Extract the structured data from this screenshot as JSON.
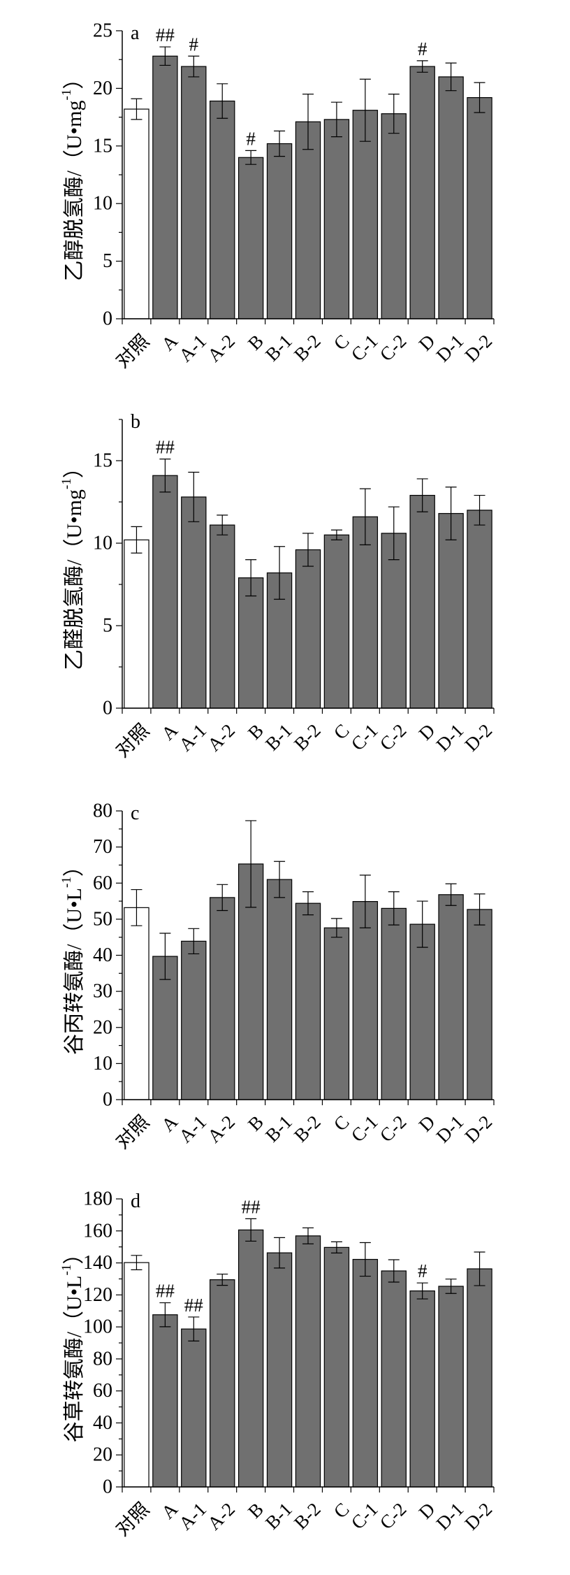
{
  "chart_data": [
    {
      "type": "bar",
      "panel_label": "a",
      "ylabel": "乙醇脱氢酶/（U•mg-1）",
      "ylabel_main": "乙醇脱氢酶/（U•mg",
      "ylabel_sup": "-1",
      "ylabel_tail": "）",
      "ylim": [
        0,
        25
      ],
      "yticks": [
        0,
        5,
        10,
        15,
        20,
        25
      ],
      "categories": [
        "对照",
        "A",
        "A-1",
        "A-2",
        "B",
        "B-1",
        "B-2",
        "C",
        "C-1",
        "C-2",
        "D",
        "D-1",
        "D-2"
      ],
      "values": [
        18.2,
        22.8,
        21.9,
        18.9,
        14.0,
        15.2,
        17.1,
        17.3,
        18.1,
        17.8,
        21.9,
        21.0,
        19.2
      ],
      "errors": [
        0.9,
        0.8,
        0.9,
        1.5,
        0.6,
        1.1,
        2.4,
        1.5,
        2.7,
        1.7,
        0.5,
        1.2,
        1.3
      ],
      "significance": [
        "",
        "##",
        "#",
        "",
        "#",
        "",
        "",
        "",
        "",
        "",
        "#",
        "",
        ""
      ],
      "colors": {
        "control": "#ffffff",
        "treatment": "#707070"
      }
    },
    {
      "type": "bar",
      "panel_label": "b",
      "ylabel": "乙醛脱氢酶/（U•mg-1）",
      "ylabel_main": "乙醛脱氢酶/（U•mg",
      "ylabel_sup": "-1",
      "ylabel_tail": "）",
      "ylim": [
        0,
        17.5
      ],
      "yticks": [
        0,
        5,
        10,
        15
      ],
      "categories": [
        "对照",
        "A",
        "A-1",
        "A-2",
        "B",
        "B-1",
        "B-2",
        "C",
        "C-1",
        "C-2",
        "D",
        "D-1",
        "D-2"
      ],
      "values": [
        10.2,
        14.1,
        12.8,
        11.1,
        7.9,
        8.2,
        9.6,
        10.5,
        11.6,
        10.6,
        12.9,
        11.8,
        12.0
      ],
      "errors": [
        0.8,
        1.0,
        1.5,
        0.6,
        1.1,
        1.6,
        1.0,
        0.3,
        1.7,
        1.6,
        1.0,
        1.6,
        0.9
      ],
      "significance": [
        "",
        "##",
        "",
        "",
        "",
        "",
        "",
        "",
        "",
        "",
        "",
        "",
        ""
      ],
      "colors": {
        "control": "#ffffff",
        "treatment": "#707070"
      }
    },
    {
      "type": "bar",
      "panel_label": "c",
      "ylabel": "谷丙转氨酶/（U•L-1）",
      "ylabel_main": "谷丙转氨酶/（U•L",
      "ylabel_sup": "-1",
      "ylabel_tail": "）",
      "ylim": [
        0,
        80
      ],
      "yticks": [
        0,
        10,
        20,
        30,
        40,
        50,
        60,
        70,
        80
      ],
      "categories": [
        "对照",
        "A",
        "A-1",
        "A-2",
        "B",
        "B-1",
        "B-2",
        "C",
        "C-1",
        "C-2",
        "D",
        "D-1",
        "D-2"
      ],
      "values": [
        53.2,
        39.7,
        43.9,
        56.0,
        65.3,
        61.0,
        54.4,
        47.6,
        54.9,
        53.0,
        48.6,
        56.8,
        52.7
      ],
      "errors": [
        5.0,
        6.4,
        3.5,
        3.6,
        12.0,
        5.0,
        3.2,
        2.6,
        7.3,
        4.6,
        6.4,
        3.0,
        4.3
      ],
      "significance": [
        "",
        "",
        "",
        "",
        "",
        "",
        "",
        "",
        "",
        "",
        "",
        "",
        ""
      ],
      "colors": {
        "control": "#ffffff",
        "treatment": "#707070"
      }
    },
    {
      "type": "bar",
      "panel_label": "d",
      "ylabel": "谷草转氨酶/（U•L-1）",
      "ylabel_main": "谷草转氨酶/（U•L",
      "ylabel_sup": "-1",
      "ylabel_tail": "）",
      "ylim": [
        0,
        180
      ],
      "yticks": [
        0,
        20,
        40,
        60,
        80,
        100,
        120,
        140,
        160,
        180
      ],
      "categories": [
        "对照",
        "A",
        "A-1",
        "A-2",
        "B",
        "B-1",
        "B-2",
        "C",
        "C-1",
        "C-2",
        "D",
        "D-1",
        "D-2"
      ],
      "values": [
        140.2,
        107.6,
        98.7,
        129.5,
        160.6,
        146.3,
        156.9,
        149.7,
        142.2,
        135.0,
        122.5,
        125.4,
        136.3
      ],
      "errors": [
        4.5,
        7.5,
        7.5,
        3.5,
        7.0,
        9.5,
        5.0,
        3.5,
        10.5,
        7.0,
        5.0,
        4.5,
        10.5
      ],
      "significance": [
        "",
        "##",
        "##",
        "",
        "##",
        "",
        "",
        "",
        "",
        "",
        "#",
        "",
        ""
      ],
      "colors": {
        "control": "#ffffff",
        "treatment": "#707070"
      }
    }
  ]
}
